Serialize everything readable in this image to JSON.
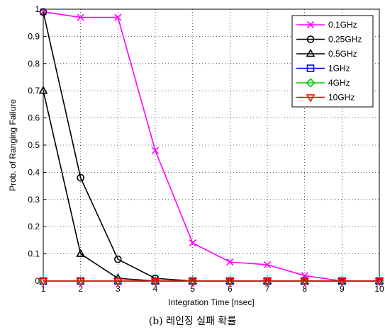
{
  "chart_data": {
    "type": "line",
    "title": "",
    "xlabel": "Integration Time [nsec]",
    "ylabel": "Prob. of Ranging Failure",
    "xlim": [
      1,
      10
    ],
    "ylim": [
      0,
      1
    ],
    "x": [
      1,
      2,
      3,
      4,
      5,
      6,
      7,
      8,
      9,
      10
    ],
    "xticks": [
      "1",
      "2",
      "3",
      "4",
      "5",
      "6",
      "7",
      "8",
      "9",
      "10"
    ],
    "yticks": [
      "0",
      "0.1",
      "0.2",
      "0.3",
      "0.4",
      "0.5",
      "0.6",
      "0.7",
      "0.8",
      "0.9",
      "1"
    ],
    "grid": true,
    "legend_position": "top-right",
    "series": [
      {
        "name": "0.1GHz",
        "color": "#ff00ff",
        "marker": "x",
        "values": [
          0.99,
          0.97,
          0.97,
          0.48,
          0.14,
          0.07,
          0.06,
          0.02,
          0.0,
          0.0
        ]
      },
      {
        "name": "0.25GHz",
        "color": "#000000",
        "marker": "circle",
        "values": [
          0.99,
          0.38,
          0.08,
          0.01,
          0.0,
          0.0,
          0.0,
          0.0,
          0.0,
          0.0
        ]
      },
      {
        "name": "0.5GHz",
        "color": "#000000",
        "marker": "triangle-up",
        "values": [
          0.7,
          0.1,
          0.01,
          0.0,
          0.0,
          0.0,
          0.0,
          0.0,
          0.0,
          0.0
        ]
      },
      {
        "name": "1GHz",
        "color": "#0000ff",
        "marker": "square",
        "values": [
          0,
          0,
          0,
          0,
          0,
          0,
          0,
          0,
          0,
          0
        ]
      },
      {
        "name": "4GHz",
        "color": "#00cc00",
        "marker": "diamond",
        "values": [
          0,
          0,
          0,
          0,
          0,
          0,
          0,
          0,
          0,
          0
        ]
      },
      {
        "name": "10GHz",
        "color": "#ff0000",
        "marker": "triangle-down",
        "values": [
          0,
          0,
          0,
          0,
          0,
          0,
          0,
          0,
          0,
          0
        ]
      }
    ]
  },
  "caption": "(b) 레인징 실패 확률"
}
